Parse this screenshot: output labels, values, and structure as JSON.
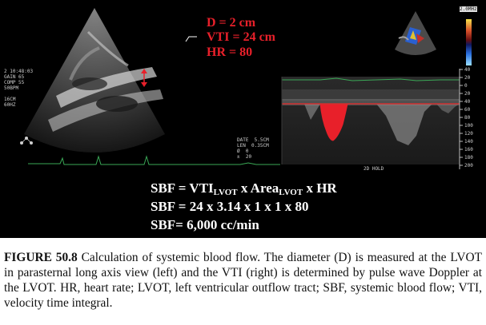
{
  "figure": {
    "measurements": {
      "diameter": "D = 2 cm",
      "vti": "VTI = 24 cm",
      "heart_rate": "HR = 80"
    },
    "equations": {
      "line1_a": "SBF = VTI",
      "line1_sub1": "LVOT",
      "line1_b": " x Area",
      "line1_sub2": "LVOT",
      "line1_c": " x HR",
      "line2": "SBF = 24 x 3.14 x 1 x 1 x 80",
      "line3": "SBF= 6,000 cc/min"
    },
    "scale_ticks": [
      "40",
      "20",
      "0",
      "20",
      "40",
      "60",
      "80",
      "100",
      "120",
      "140",
      "160",
      "180",
      "200"
    ],
    "top_right_label": "2.0MHz",
    "scan_text_left": "2 10:48:03\nGAIN 65\nCOMP 55\n50BPM\n\n16CM\n60HZ",
    "doppler_text": "DATE  5.5CM\nLEN  0.35CM\nØ  0\n±  20",
    "doppler_bottom_text": "2D HOLD",
    "colors": {
      "annotation_red": "#e8202a",
      "doppler_fill": "#e8202a",
      "baseline": "#d23030",
      "ecg_green": "#3aa856"
    }
  },
  "caption": {
    "label": "FIGURE 50.8",
    "text": " Calculation of systemic blood flow. The diameter (D) is measured at the LVOT in parasternal long axis view (left) and the VTI (right) is determined by pulse wave Doppler at the LVOT. HR, heart rate; LVOT, left ventricular outflow tract; SBF, systemic blood flow; VTI, velocity time integral."
  }
}
